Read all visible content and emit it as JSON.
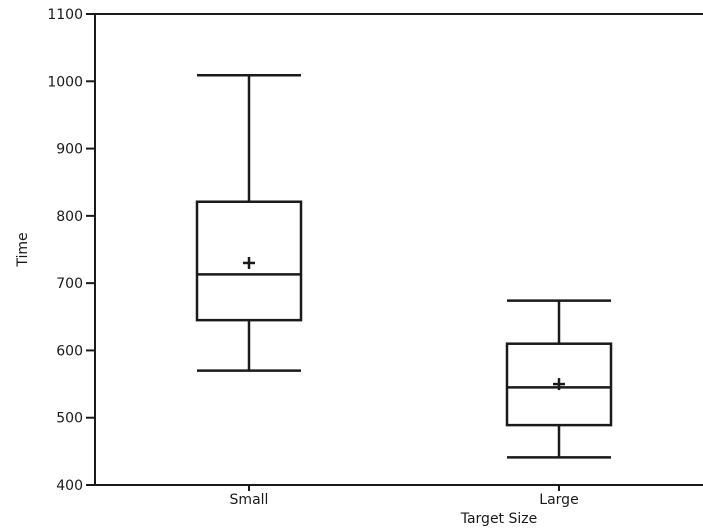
{
  "chart_data": {
    "type": "box",
    "title": "",
    "xlabel": "Target Size",
    "ylabel": "Time",
    "ylim": [
      400,
      1100
    ],
    "yticks": [
      400,
      500,
      600,
      700,
      800,
      900,
      1000,
      1100
    ],
    "ytick_labels": [
      "400",
      "500",
      "600",
      "700",
      "800",
      "900",
      "1000",
      "1100"
    ],
    "categories": [
      "Small",
      "Large"
    ],
    "boxes": [
      {
        "category": "Small",
        "whisker_low": 570,
        "q1": 645,
        "median": 713,
        "q3": 821,
        "whisker_high": 1009,
        "mean": 730
      },
      {
        "category": "Large",
        "whisker_low": 441,
        "q1": 489,
        "median": 545,
        "q3": 610,
        "whisker_high": 674,
        "mean": 550
      }
    ],
    "mean_marker": "plus",
    "grid": false,
    "legend": "none",
    "colors": {
      "line": "#1a1a1a",
      "box_fill": "#ffffff"
    }
  }
}
